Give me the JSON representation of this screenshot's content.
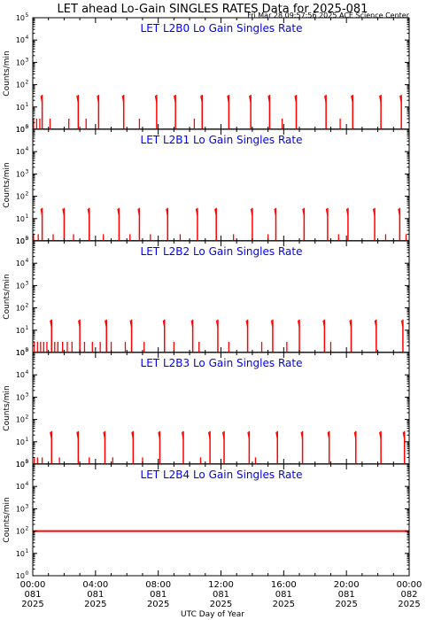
{
  "page": {
    "title": "LET ahead Lo-Gain SINGLES RATES Data for 2025-081",
    "subtitle": "Fri Mar 28 09:57:56 2025 ACE Science Center",
    "xlabel": "UTC Day of Year"
  },
  "colors": {
    "axis": "#000000",
    "data": "#ff0000",
    "panel_title": "#0000ff"
  },
  "x_axis": {
    "range_hours": [
      0,
      24
    ],
    "ticks": [
      {
        "hours": 0,
        "time": "00:00",
        "day": "081",
        "year": "2025"
      },
      {
        "hours": 4,
        "time": "04:00",
        "day": "081",
        "year": "2025"
      },
      {
        "hours": 8,
        "time": "08:00",
        "day": "081",
        "year": "2025"
      },
      {
        "hours": 12,
        "time": "12:00",
        "day": "081",
        "year": "2025"
      },
      {
        "hours": 16,
        "time": "16:00",
        "day": "081",
        "year": "2025"
      },
      {
        "hours": 20,
        "time": "20:00",
        "day": "081",
        "year": "2025"
      },
      {
        "hours": 24,
        "time": "00:00",
        "day": "082",
        "year": "2025"
      }
    ]
  },
  "y_axis": {
    "scale": "log",
    "range": [
      1,
      100000
    ],
    "label": "Counts/min",
    "ticks": [
      {
        "exp": 0,
        "label": "10",
        "sup": "0"
      },
      {
        "exp": 1,
        "label": "10",
        "sup": "1"
      },
      {
        "exp": 2,
        "label": "10",
        "sup": "2"
      },
      {
        "exp": 3,
        "label": "10",
        "sup": "3"
      },
      {
        "exp": 4,
        "label": "10",
        "sup": "4"
      },
      {
        "exp": 5,
        "label": "10",
        "sup": "5"
      }
    ]
  },
  "chart_data": [
    {
      "type": "line",
      "title": "LET L2B0 Lo Gain Singles Rate",
      "ylabel": "Counts/min",
      "yscale": "log",
      "ylim": [
        1,
        100000
      ],
      "xlim_hours": [
        0,
        24
      ],
      "baseline": 1,
      "spike_peak": 35,
      "spikes_hours": [
        0.6,
        2.9,
        4.2,
        5.8,
        7.9,
        9.1,
        10.8,
        12.5,
        13.9,
        15.1,
        16.8,
        18.7,
        20.4,
        22.2,
        23.5
      ],
      "minor_bursts_hours": [
        0.05,
        0.25,
        0.45,
        1.1,
        2.3,
        3.4,
        6.8,
        10.3,
        15.9,
        19.6
      ],
      "minor_peak": 3
    },
    {
      "type": "line",
      "title": "LET L2B1 Lo Gain Singles Rate",
      "ylabel": "Counts/min",
      "yscale": "log",
      "ylim": [
        1,
        100000
      ],
      "xlim_hours": [
        0,
        24
      ],
      "baseline": 1,
      "spike_peak": 30,
      "spikes_hours": [
        0.6,
        2.0,
        3.6,
        5.5,
        6.8,
        8.6,
        10.5,
        11.7,
        14.0,
        15.5,
        17.3,
        18.8,
        20.1,
        21.8,
        23.4
      ],
      "minor_bursts_hours": [
        0.05,
        0.35,
        1.3,
        2.6,
        4.5,
        6.2,
        7.5,
        9.4,
        12.8,
        15.0,
        19.5,
        22.5,
        23.8
      ],
      "minor_peak": 2
    },
    {
      "type": "line",
      "title": "LET L2B2 Lo Gain Singles Rate",
      "ylabel": "Counts/min",
      "yscale": "log",
      "ylim": [
        1,
        100000
      ],
      "xlim_hours": [
        0,
        24
      ],
      "baseline": 1,
      "spike_peak": 30,
      "spikes_hours": [
        1.2,
        3.0,
        4.7,
        6.3,
        8.4,
        10.2,
        11.8,
        13.7,
        15.3,
        17.0,
        18.6,
        20.3,
        21.9,
        23.6
      ],
      "minor_bursts_hours": [
        0.1,
        0.3,
        0.5,
        0.7,
        0.9,
        1.4,
        1.6,
        1.9,
        2.2,
        2.5,
        3.3,
        3.8,
        4.3,
        5.0,
        5.9,
        7.1,
        9.0,
        10.6,
        12.5,
        14.6,
        16.2,
        19.0
      ],
      "minor_peak": 3
    },
    {
      "type": "line",
      "title": "LET L2B3 Lo Gain Singles Rate",
      "ylabel": "Counts/min",
      "yscale": "log",
      "ylim": [
        1,
        100000
      ],
      "xlim_hours": [
        0,
        24
      ],
      "baseline": 1,
      "spike_peak": 30,
      "spikes_hours": [
        1.2,
        2.9,
        4.6,
        6.4,
        8.1,
        9.6,
        11.3,
        12.2,
        13.8,
        15.6,
        17.2,
        18.9,
        20.6,
        22.2,
        23.7
      ],
      "minor_bursts_hours": [
        0.1,
        0.3,
        0.6,
        1.7,
        3.6,
        5.1,
        7.0,
        10.7,
        14.2
      ],
      "minor_peak": 2
    },
    {
      "type": "line",
      "title": "LET L2B4 Lo Gain Singles Rate",
      "ylabel": "Counts/min",
      "yscale": "log",
      "ylim": [
        1,
        100000
      ],
      "xlim_hours": [
        0,
        24
      ],
      "baseline": 100,
      "spike_peak": 100,
      "spikes_hours": [],
      "minor_bursts_hours": [],
      "minor_peak": 100
    }
  ]
}
